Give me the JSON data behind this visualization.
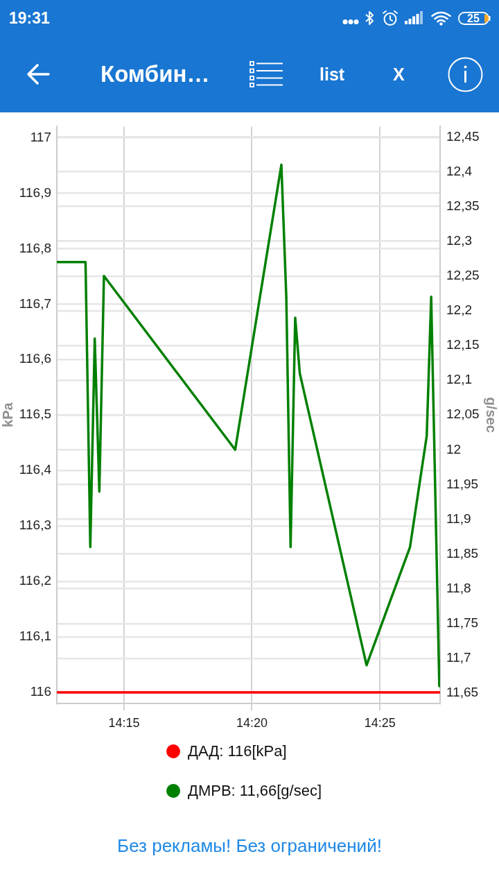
{
  "chart_data": {
    "type": "line",
    "title": "Комбин…",
    "ylabel": "kPa",
    "y2label": "g/sec",
    "xlim": [
      14.2062,
      14.4559
    ],
    "xticks": [
      {
        "value": 14.25,
        "label": "14:15"
      },
      {
        "value": 14.3333,
        "label": "14:20"
      },
      {
        "value": 14.4167,
        "label": "14:25"
      }
    ],
    "ylim": [
      115.98,
      117.02
    ],
    "yticks": [
      116,
      {
        "value": 116.1,
        "label": "116,1"
      },
      {
        "value": 116.2,
        "label": "116,2"
      },
      {
        "value": 116.3,
        "label": "116,3"
      },
      {
        "value": 116.4,
        "label": "116,4"
      },
      {
        "value": 116.5,
        "label": "116,5"
      },
      {
        "value": 116.6,
        "label": "116,6"
      },
      {
        "value": 116.7,
        "label": "116,7"
      },
      {
        "value": 116.8,
        "label": "116,8"
      },
      {
        "value": 116.9,
        "label": "116,9"
      },
      117
    ],
    "y2lim": [
      11.635,
      12.465
    ],
    "y2ticks": [
      {
        "value": 11.65,
        "label": "11,65"
      },
      {
        "value": 11.7,
        "label": "11,7"
      },
      {
        "value": 11.75,
        "label": "11,75"
      },
      {
        "value": 11.8,
        "label": "11,8"
      },
      {
        "value": 11.85,
        "label": "11,85"
      },
      {
        "value": 11.9,
        "label": "11,9"
      },
      {
        "value": 11.95,
        "label": "11,95"
      },
      12,
      {
        "value": 12.05,
        "label": "12,05"
      },
      {
        "value": 12.1,
        "label": "12,1"
      },
      {
        "value": 12.15,
        "label": "12,15"
      },
      {
        "value": 12.2,
        "label": "12,2"
      },
      {
        "value": 12.25,
        "label": "12,25"
      },
      {
        "value": 12.3,
        "label": "12,3"
      },
      {
        "value": 12.35,
        "label": "12,35"
      },
      {
        "value": 12.4,
        "label": "12,4"
      },
      {
        "value": 12.45,
        "label": "12,45"
      }
    ],
    "series": [
      {
        "name": "ДАД: 116[kPa]",
        "color": "#ff0000",
        "x": [
          14.2062,
          14.4554
        ],
        "values": [
          116,
          116
        ]
      },
      {
        "name": "ДМРВ: 11,66[g/sec]",
        "color": "#008000",
        "axis": "y2",
        "x": [
          14.2062,
          14.2249,
          14.228,
          14.2309,
          14.2339,
          14.2369,
          14.3224,
          14.3525,
          14.3557,
          14.3585,
          14.3615,
          14.3645,
          14.408,
          14.4363,
          14.4472,
          14.4501,
          14.4554
        ],
        "values": [
          12.27,
          12.27,
          11.86,
          12.16,
          11.94,
          12.25,
          12.0,
          12.41,
          12.22,
          11.86,
          12.19,
          12.11,
          11.69,
          11.86,
          12.02,
          12.22,
          11.66
        ]
      }
    ],
    "grid": true,
    "legend": "bottom",
    "annotations": [
      "19:31",
      "25",
      "list",
      "X",
      "Без рекламы! Без ограничений!"
    ]
  }
}
